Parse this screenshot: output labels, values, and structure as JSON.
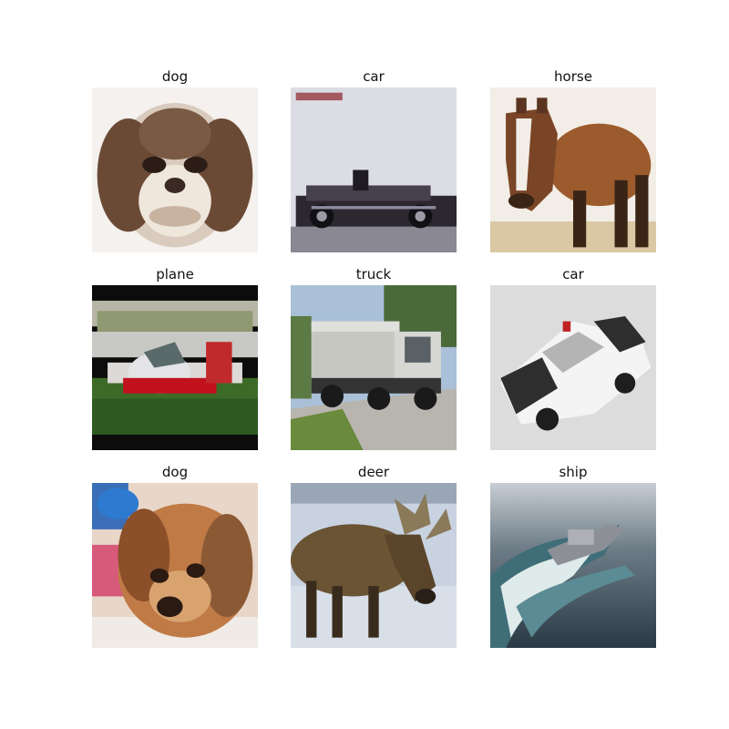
{
  "figure": {
    "images": [
      {
        "label": "dog",
        "subject": "fluffy brown and white dog face"
      },
      {
        "label": "car",
        "subject": "dark convertible car on a road"
      },
      {
        "label": "horse",
        "subject": "brown horse with white blaze"
      },
      {
        "label": "plane",
        "subject": "red and white small airplane on grass"
      },
      {
        "label": "truck",
        "subject": "white box truck on a road"
      },
      {
        "label": "car",
        "subject": "white police car"
      },
      {
        "label": "dog",
        "subject": "tan puppy lying down"
      },
      {
        "label": "deer",
        "subject": "moose in snow"
      },
      {
        "label": "ship",
        "subject": "boat with white wake on water"
      }
    ]
  }
}
